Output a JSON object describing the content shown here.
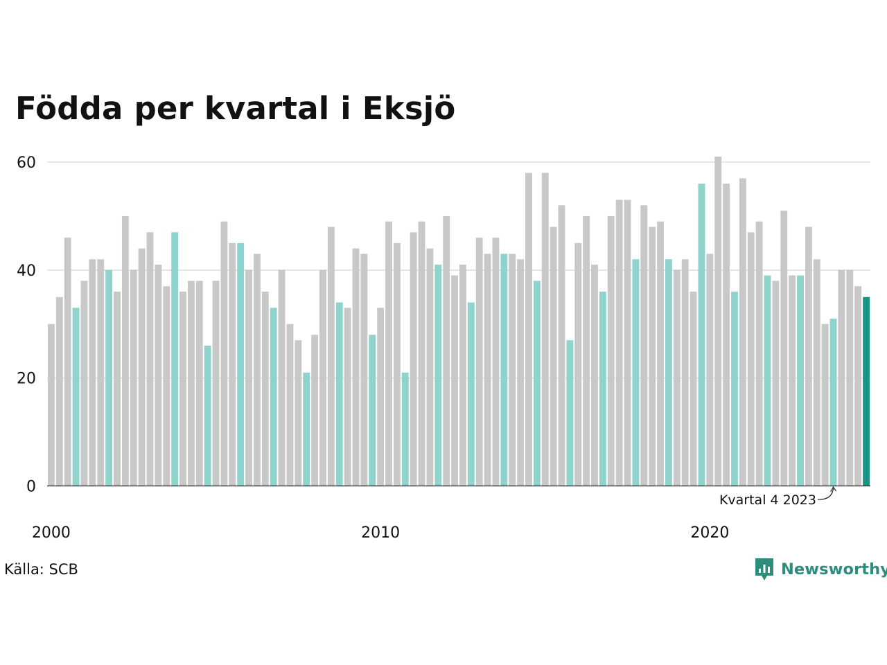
{
  "chart_data": {
    "type": "bar",
    "title": "Födda per kvartal i Eksjö",
    "xlabel": "",
    "ylabel": "",
    "ylim": [
      0,
      60
    ],
    "yticks": [
      0,
      20,
      40,
      60
    ],
    "x_tick_labels": [
      {
        "label": "2000",
        "category": "2000 Q1"
      },
      {
        "label": "2010",
        "category": "2010 Q1"
      },
      {
        "label": "2020",
        "category": "2020 Q1"
      }
    ],
    "grid": true,
    "colors": {
      "default": "#c8c8c8",
      "highlight": "#8ed4cd",
      "current": "#1a9485"
    },
    "categories": [
      "2000 Q1",
      "2000 Q2",
      "2000 Q3",
      "2000 Q4",
      "2001 Q1",
      "2001 Q2",
      "2001 Q3",
      "2001 Q4",
      "2002 Q1",
      "2002 Q2",
      "2002 Q3",
      "2002 Q4",
      "2003 Q1",
      "2003 Q2",
      "2003 Q3",
      "2003 Q4",
      "2004 Q1",
      "2004 Q2",
      "2004 Q3",
      "2004 Q4",
      "2005 Q1",
      "2005 Q2",
      "2005 Q3",
      "2005 Q4",
      "2006 Q1",
      "2006 Q2",
      "2006 Q3",
      "2006 Q4",
      "2007 Q1",
      "2007 Q2",
      "2007 Q3",
      "2007 Q4",
      "2008 Q1",
      "2008 Q2",
      "2008 Q3",
      "2008 Q4",
      "2009 Q1",
      "2009 Q2",
      "2009 Q3",
      "2009 Q4",
      "2010 Q1",
      "2010 Q2",
      "2010 Q3",
      "2010 Q4",
      "2011 Q1",
      "2011 Q2",
      "2011 Q3",
      "2011 Q4",
      "2012 Q1",
      "2012 Q2",
      "2012 Q3",
      "2012 Q4",
      "2013 Q1",
      "2013 Q2",
      "2013 Q3",
      "2013 Q4",
      "2014 Q1",
      "2014 Q2",
      "2014 Q3",
      "2014 Q4",
      "2015 Q1",
      "2015 Q2",
      "2015 Q3",
      "2015 Q4",
      "2016 Q1",
      "2016 Q2",
      "2016 Q3",
      "2016 Q4",
      "2017 Q1",
      "2017 Q2",
      "2017 Q3",
      "2017 Q4",
      "2018 Q1",
      "2018 Q2",
      "2018 Q3",
      "2018 Q4",
      "2019 Q1",
      "2019 Q2",
      "2019 Q3",
      "2019 Q4",
      "2020 Q1",
      "2020 Q2",
      "2020 Q3",
      "2020 Q4",
      "2021 Q1",
      "2021 Q2",
      "2021 Q3",
      "2021 Q4",
      "2022 Q1",
      "2022 Q2",
      "2022 Q3",
      "2022 Q4",
      "2023 Q1",
      "2023 Q2",
      "2023 Q3",
      "2023 Q4",
      "2024 Q1",
      "2024 Q2",
      "2024 Q3",
      "2024 Q4"
    ],
    "values": [
      30,
      35,
      46,
      33,
      38,
      42,
      42,
      40,
      36,
      50,
      40,
      44,
      47,
      41,
      37,
      47,
      36,
      38,
      38,
      26,
      38,
      49,
      45,
      45,
      40,
      43,
      36,
      33,
      40,
      30,
      27,
      21,
      28,
      40,
      48,
      34,
      33,
      44,
      43,
      28,
      33,
      49,
      45,
      21,
      47,
      49,
      44,
      41,
      50,
      39,
      41,
      34,
      46,
      43,
      46,
      43,
      43,
      42,
      58,
      38,
      58,
      48,
      52,
      27,
      45,
      50,
      41,
      36,
      50,
      53,
      53,
      42,
      52,
      48,
      49,
      42,
      40,
      42,
      36,
      56,
      43,
      61,
      56,
      36,
      57,
      47,
      49,
      39,
      38,
      51,
      39,
      39,
      48,
      42,
      30,
      31,
      40,
      40,
      37,
      35
    ],
    "highlight_categories": [
      "2000 Q4",
      "2001 Q4",
      "2003 Q4",
      "2004 Q4",
      "2005 Q4",
      "2006 Q4",
      "2007 Q4",
      "2008 Q4",
      "2009 Q4",
      "2010 Q4",
      "2011 Q4",
      "2012 Q4",
      "2013 Q4",
      "2014 Q4",
      "2015 Q4",
      "2016 Q4",
      "2017 Q4",
      "2018 Q4",
      "2019 Q4",
      "2020 Q4",
      "2021 Q4",
      "2022 Q4",
      "2023 Q4"
    ],
    "current_category": "2024 Q4",
    "annotation": {
      "text": "Kvartal 4 2023",
      "category": "2023 Q4"
    }
  },
  "source": "Källa: SCB",
  "brand": {
    "name": "Newsworthy",
    "icon": "newsworthy-logo-icon"
  }
}
